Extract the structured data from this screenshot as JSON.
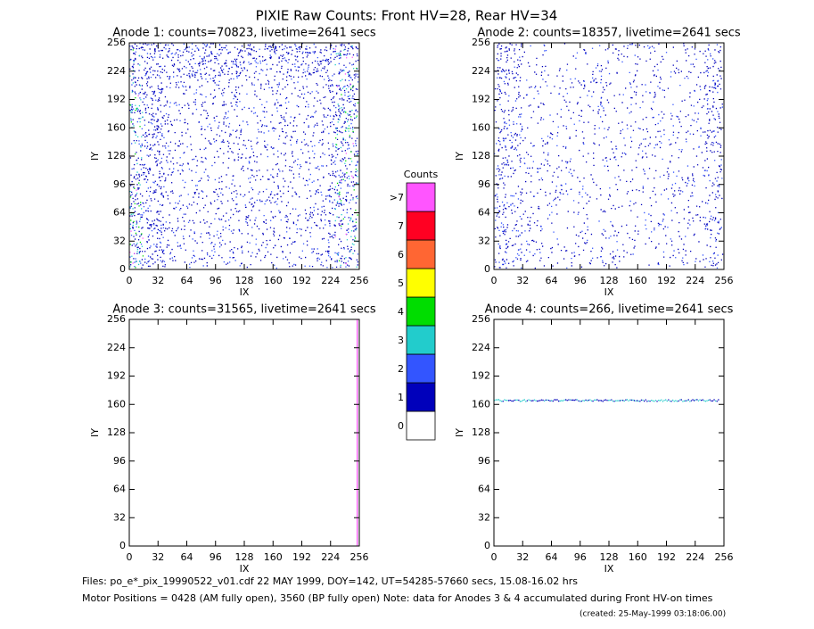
{
  "title": "PIXIE Raw Counts:  Front HV=28, Rear HV=34",
  "chart_data": [
    {
      "type": "heatmap",
      "title": "Anode 1: counts=70823, livetime=2641 secs",
      "xlabel": "IX",
      "ylabel": "IY",
      "xlim": [
        0,
        256
      ],
      "ylim": [
        0,
        256
      ],
      "xticks": [
        0,
        32,
        64,
        96,
        128,
        160,
        192,
        224,
        256
      ],
      "yticks": [
        0,
        32,
        64,
        96,
        128,
        160,
        192,
        224,
        256
      ]
    },
    {
      "type": "heatmap",
      "title": "Anode 2: counts=18357, livetime=2641 secs",
      "xlabel": "IX",
      "ylabel": "IY",
      "xlim": [
        0,
        256
      ],
      "ylim": [
        0,
        256
      ],
      "xticks": [
        0,
        32,
        64,
        96,
        128,
        160,
        192,
        224,
        256
      ],
      "yticks": [
        0,
        32,
        64,
        96,
        128,
        160,
        192,
        224,
        256
      ]
    },
    {
      "type": "heatmap",
      "title": "Anode 3: counts=31565, livetime=2641 secs",
      "xlabel": "IX",
      "ylabel": "IY",
      "xlim": [
        0,
        256
      ],
      "ylim": [
        0,
        256
      ],
      "xticks": [
        0,
        32,
        64,
        96,
        128,
        160,
        192,
        224,
        256
      ],
      "yticks": [
        0,
        32,
        64,
        96,
        128,
        160,
        192,
        224,
        256
      ]
    },
    {
      "type": "heatmap",
      "title": "Anode 4: counts=266, livetime=2641 secs",
      "xlabel": "IX",
      "ylabel": "IY",
      "xlim": [
        0,
        256
      ],
      "ylim": [
        0,
        256
      ],
      "xticks": [
        0,
        32,
        64,
        96,
        128,
        160,
        192,
        224,
        256
      ],
      "yticks": [
        0,
        32,
        64,
        96,
        128,
        160,
        192,
        224,
        256
      ]
    }
  ],
  "colorbar": {
    "title": "Counts",
    "levels": [
      {
        "label": "0",
        "color": "#ffffff"
      },
      {
        "label": "1",
        "color": "#0000bb"
      },
      {
        "label": "2",
        "color": "#3355ff"
      },
      {
        "label": "3",
        "color": "#22cccc"
      },
      {
        "label": "4",
        "color": "#00dd00"
      },
      {
        "label": "5",
        "color": "#ffff00"
      },
      {
        "label": "6",
        "color": "#ff6633"
      },
      {
        "label": "7",
        "color": "#ff0022"
      },
      {
        "label": ">7",
        "color": "#ff55ff"
      }
    ]
  },
  "notes": [
    "Files: po_e*_pix_19990522_v01.cdf    22 MAY 1999, DOY=142, UT=54285-57660 secs, 15.08-16.02 hrs",
    "Motor Positions = 0428 (AM fully open), 3560 (BP fully open)    Note: data for Anodes 3 & 4 accumulated during Front HV-on times",
    "(created: 25-May-1999 03:18:06.00)"
  ]
}
